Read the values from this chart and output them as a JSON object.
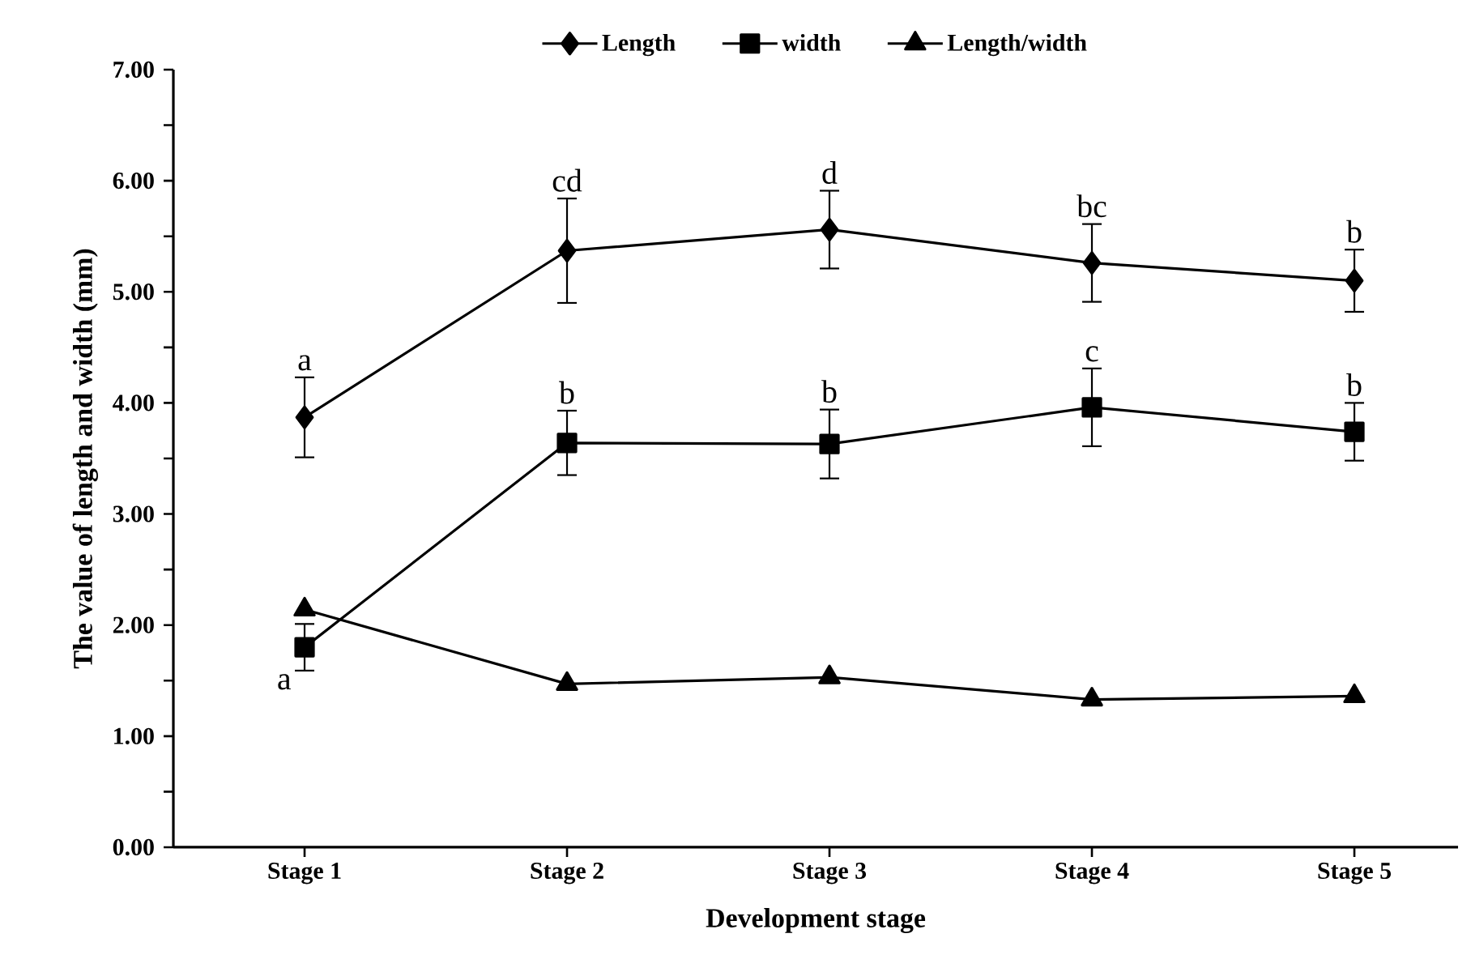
{
  "chart_data": {
    "type": "line",
    "xlabel": "Development stage",
    "ylabel": "The value of length and width (mm)",
    "categories": [
      "Stage 1",
      "Stage 2",
      "Stage 3",
      "Stage 4",
      "Stage 5"
    ],
    "series": [
      {
        "name": "Length",
        "color": "#000000",
        "marker": "diamond",
        "values": [
          3.87,
          5.37,
          5.56,
          5.26,
          5.1
        ],
        "errors": [
          0.36,
          0.47,
          0.35,
          0.35,
          0.28
        ]
      },
      {
        "name": "width",
        "color": "#000000",
        "marker": "square",
        "values": [
          1.8,
          3.64,
          3.63,
          3.96,
          3.74
        ],
        "errors": [
          0.21,
          0.29,
          0.31,
          0.35,
          0.26
        ]
      },
      {
        "name": "Length/width",
        "color": "#000000",
        "marker": "triangle",
        "values": [
          2.14,
          1.47,
          1.53,
          1.33,
          1.36
        ]
      }
    ],
    "ylim": [
      0,
      7
    ],
    "yticks": [
      {
        "value": 0,
        "label": "0.00"
      },
      {
        "value": 0.5,
        "label": null
      },
      {
        "value": 1,
        "label": "1.00"
      },
      {
        "value": 1.5,
        "label": null
      },
      {
        "value": 2,
        "label": "2.00"
      },
      {
        "value": 2.5,
        "label": null
      },
      {
        "value": 3,
        "label": "3.00"
      },
      {
        "value": 3.5,
        "label": null
      },
      {
        "value": 4,
        "label": "4.00"
      },
      {
        "value": 4.5,
        "label": null
      },
      {
        "value": 5,
        "label": "5.00"
      },
      {
        "value": 5.5,
        "label": null
      },
      {
        "value": 6,
        "label": "6.00"
      },
      {
        "value": 6.5,
        "label": null
      },
      {
        "value": 7,
        "label": "7.00"
      }
    ],
    "annotations": [
      {
        "text": "a",
        "x": "Stage 1",
        "y": 4.23
      },
      {
        "text": "cd",
        "x": "Stage 2",
        "y": 5.84
      },
      {
        "text": "d",
        "x": "Stage 3",
        "y": 5.91
      },
      {
        "text": "bc",
        "x": "Stage 4",
        "y": 5.61
      },
      {
        "text": "b",
        "x": "Stage 5",
        "y": 5.38
      },
      {
        "text": "a",
        "x": "Stage 1",
        "y": 1.59
      },
      {
        "text": "b",
        "x": "Stage 2",
        "y": 3.93
      },
      {
        "text": "b",
        "x": "Stage 3",
        "y": 3.94
      },
      {
        "text": "c",
        "x": "Stage 4",
        "y": 4.31
      },
      {
        "text": "b",
        "x": "Stage 5",
        "y": 4.0
      }
    ],
    "legend": "top",
    "grid": false,
    "line_style": "solid"
  }
}
